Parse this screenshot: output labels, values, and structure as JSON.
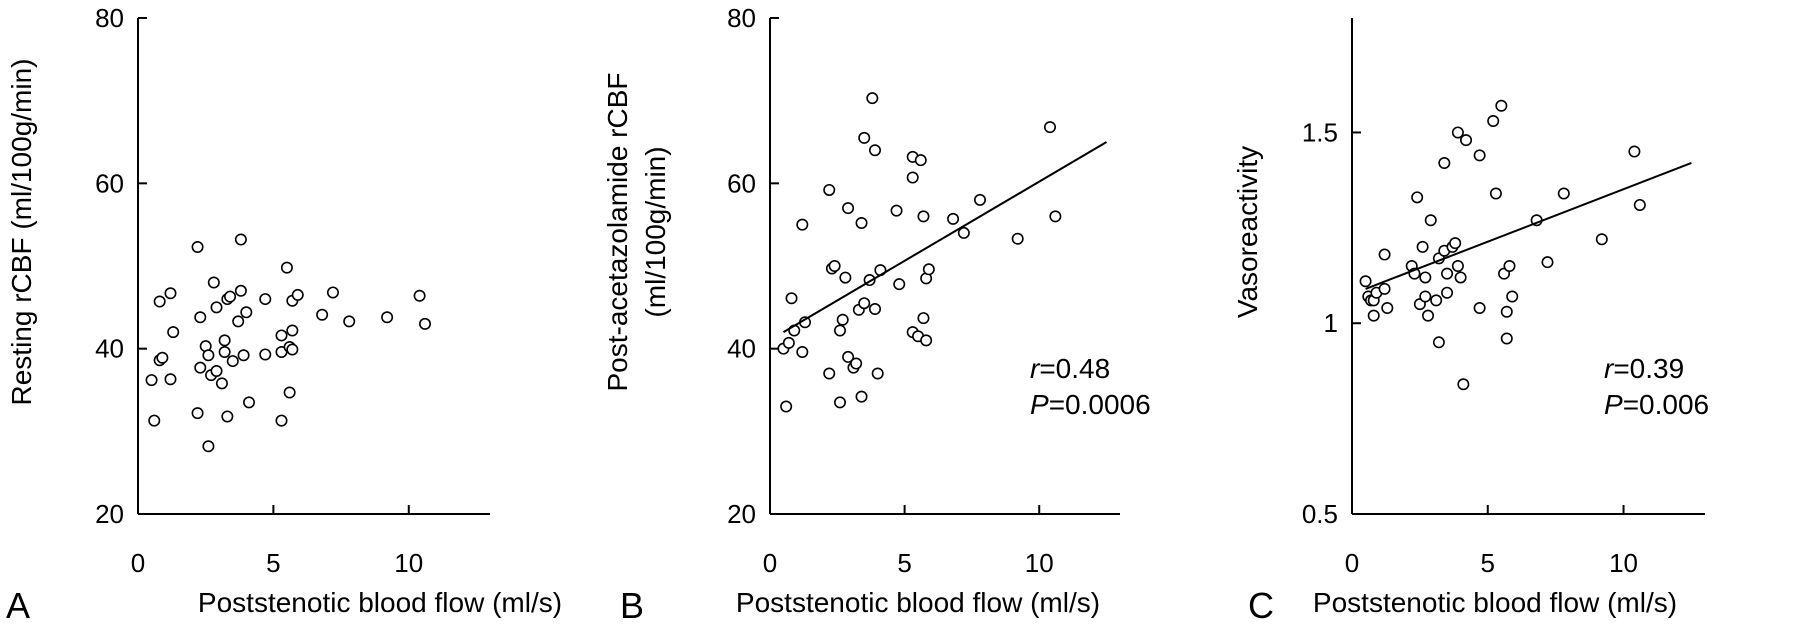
{
  "chart_data": [
    {
      "type": "scatter",
      "panel_label": "A",
      "xlabel": "Poststenotic blood flow (ml/s)",
      "ylabel": "Resting rCBF (ml/100g/min)",
      "xlim": [
        0,
        13
      ],
      "ylim": [
        20,
        80
      ],
      "xticks": [
        0,
        5,
        10
      ],
      "yticks": [
        20,
        40,
        60,
        80
      ],
      "xtick_labels": [
        "0",
        "5",
        "10"
      ],
      "ytick_labels": [
        "20",
        "40",
        "60",
        "80"
      ],
      "grid": false,
      "points": [
        [
          0.5,
          36.2
        ],
        [
          0.6,
          31.3
        ],
        [
          0.8,
          38.6
        ],
        [
          0.8,
          45.7
        ],
        [
          0.9,
          38.9
        ],
        [
          1.2,
          46.7
        ],
        [
          1.2,
          36.3
        ],
        [
          1.3,
          42
        ],
        [
          2.2,
          52.3
        ],
        [
          2.2,
          32.2
        ],
        [
          2.3,
          43.8
        ],
        [
          2.3,
          37.7
        ],
        [
          2.5,
          40.3
        ],
        [
          2.6,
          28.2
        ],
        [
          2.6,
          39.2
        ],
        [
          2.7,
          36.8
        ],
        [
          2.8,
          48
        ],
        [
          2.9,
          37.3
        ],
        [
          2.9,
          45
        ],
        [
          3.1,
          35.8
        ],
        [
          3.2,
          41
        ],
        [
          3.2,
          39.6
        ],
        [
          3.3,
          46
        ],
        [
          3.3,
          31.8
        ],
        [
          3.4,
          46.3
        ],
        [
          3.5,
          38.5
        ],
        [
          3.7,
          43.3
        ],
        [
          3.8,
          53.2
        ],
        [
          3.8,
          47
        ],
        [
          3.9,
          39.2
        ],
        [
          4,
          44.4
        ],
        [
          4.1,
          33.5
        ],
        [
          4.7,
          46
        ],
        [
          4.7,
          39.3
        ],
        [
          5.3,
          41.6
        ],
        [
          5.3,
          31.3
        ],
        [
          5.3,
          39.6
        ],
        [
          5.5,
          49.8
        ],
        [
          5.6,
          40.2
        ],
        [
          5.6,
          34.7
        ],
        [
          5.7,
          45.8
        ],
        [
          5.7,
          42.2
        ],
        [
          5.7,
          39.9
        ],
        [
          5.9,
          46.5
        ],
        [
          6.8,
          44.1
        ],
        [
          7.2,
          46.8
        ],
        [
          7.8,
          43.3
        ],
        [
          9.2,
          43.8
        ],
        [
          10.4,
          46.4
        ],
        [
          10.6,
          43
        ]
      ],
      "fit_line": null,
      "stats": null
    },
    {
      "type": "scatter",
      "panel_label": "B",
      "xlabel": "Poststenotic blood flow (ml/s)",
      "ylabel": [
        "Post-acetazolamide rCBF",
        "(ml/100g/min)"
      ],
      "xlim": [
        0,
        13
      ],
      "ylim": [
        20,
        80
      ],
      "xticks": [
        0,
        5,
        10
      ],
      "yticks": [
        20,
        40,
        60,
        80
      ],
      "xtick_labels": [
        "0",
        "5",
        "10"
      ],
      "ytick_labels": [
        "20",
        "40",
        "60",
        "80"
      ],
      "grid": false,
      "points": [
        [
          0.5,
          40
        ],
        [
          0.6,
          33
        ],
        [
          0.7,
          40.7
        ],
        [
          0.8,
          46.1
        ],
        [
          0.9,
          42.2
        ],
        [
          1.2,
          55
        ],
        [
          1.2,
          39.6
        ],
        [
          1.3,
          43.2
        ],
        [
          2.2,
          59.2
        ],
        [
          2.2,
          37
        ],
        [
          2.3,
          49.7
        ],
        [
          2.4,
          50
        ],
        [
          2.6,
          42.2
        ],
        [
          2.6,
          33.5
        ],
        [
          2.7,
          43.5
        ],
        [
          2.8,
          48.6
        ],
        [
          2.9,
          57
        ],
        [
          2.9,
          39
        ],
        [
          3.1,
          37.7
        ],
        [
          3.2,
          38.2
        ],
        [
          3.3,
          44.7
        ],
        [
          3.4,
          55.2
        ],
        [
          3.4,
          34.2
        ],
        [
          3.5,
          65.5
        ],
        [
          3.5,
          45.5
        ],
        [
          3.7,
          48.3
        ],
        [
          3.8,
          70.3
        ],
        [
          3.9,
          64
        ],
        [
          3.9,
          44.8
        ],
        [
          4,
          37
        ],
        [
          4.1,
          49.5
        ],
        [
          4.7,
          56.7
        ],
        [
          4.8,
          47.8
        ],
        [
          5.3,
          63.2
        ],
        [
          5.3,
          60.7
        ],
        [
          5.3,
          42
        ],
        [
          5.5,
          41.5
        ],
        [
          5.6,
          62.8
        ],
        [
          5.7,
          56
        ],
        [
          5.7,
          43.7
        ],
        [
          5.8,
          41
        ],
        [
          5.8,
          48.5
        ],
        [
          5.9,
          49.6
        ],
        [
          6.8,
          55.7
        ],
        [
          7.2,
          54
        ],
        [
          7.8,
          58
        ],
        [
          9.2,
          53.3
        ],
        [
          10.4,
          66.8
        ],
        [
          10.6,
          56
        ]
      ],
      "fit_line": [
        [
          0.5,
          42
        ],
        [
          12.5,
          65
        ]
      ],
      "stats": {
        "r_label": "r",
        "r_value": "=0.48",
        "p_label": "P",
        "p_value": "=0.0006"
      }
    },
    {
      "type": "scatter",
      "panel_label": "C",
      "xlabel": "Poststenotic blood flow (ml/s)",
      "ylabel": "Vasoreactivity",
      "xlim": [
        0,
        13
      ],
      "ylim": [
        0.5,
        1.8
      ],
      "xticks": [
        0,
        5,
        10
      ],
      "yticks": [
        0.5,
        1,
        1.5
      ],
      "xtick_labels": [
        "0",
        "5",
        "10"
      ],
      "ytick_labels": [
        "0.5",
        "1",
        "1.5"
      ],
      "grid": false,
      "points": [
        [
          0.5,
          1.11
        ],
        [
          0.6,
          1.07
        ],
        [
          0.7,
          1.06
        ],
        [
          0.8,
          1.06
        ],
        [
          0.8,
          1.02
        ],
        [
          0.9,
          1.08
        ],
        [
          1.2,
          1.18
        ],
        [
          1.2,
          1.09
        ],
        [
          1.3,
          1.04
        ],
        [
          2.2,
          1.15
        ],
        [
          2.3,
          1.13
        ],
        [
          2.4,
          1.33
        ],
        [
          2.5,
          1.05
        ],
        [
          2.6,
          1.2
        ],
        [
          2.7,
          1.07
        ],
        [
          2.7,
          1.12
        ],
        [
          2.8,
          1.02
        ],
        [
          2.9,
          1.27
        ],
        [
          3.1,
          1.06
        ],
        [
          3.2,
          1.17
        ],
        [
          3.2,
          0.95
        ],
        [
          3.4,
          1.42
        ],
        [
          3.4,
          1.19
        ],
        [
          3.5,
          1.08
        ],
        [
          3.5,
          1.13
        ],
        [
          3.7,
          1.2
        ],
        [
          3.8,
          1.21
        ],
        [
          3.9,
          1.5
        ],
        [
          3.9,
          1.15
        ],
        [
          4,
          1.12
        ],
        [
          4.1,
          0.84
        ],
        [
          4.2,
          1.48
        ],
        [
          4.7,
          1.44
        ],
        [
          4.7,
          1.04
        ],
        [
          5.2,
          1.53
        ],
        [
          5.3,
          1.34
        ],
        [
          5.5,
          1.57
        ],
        [
          5.6,
          1.13
        ],
        [
          5.7,
          1.03
        ],
        [
          5.7,
          0.96
        ],
        [
          5.8,
          1.15
        ],
        [
          5.9,
          1.07
        ],
        [
          6.8,
          1.27
        ],
        [
          7.2,
          1.16
        ],
        [
          7.8,
          1.34
        ],
        [
          9.2,
          1.22
        ],
        [
          10.4,
          1.45
        ],
        [
          10.6,
          1.31
        ]
      ],
      "fit_line": [
        [
          0.5,
          1.09
        ],
        [
          12.5,
          1.42
        ]
      ],
      "stats": {
        "r_label": "r",
        "r_value": "=0.39",
        "p_label": "P",
        "p_value": "=0.006"
      }
    }
  ]
}
